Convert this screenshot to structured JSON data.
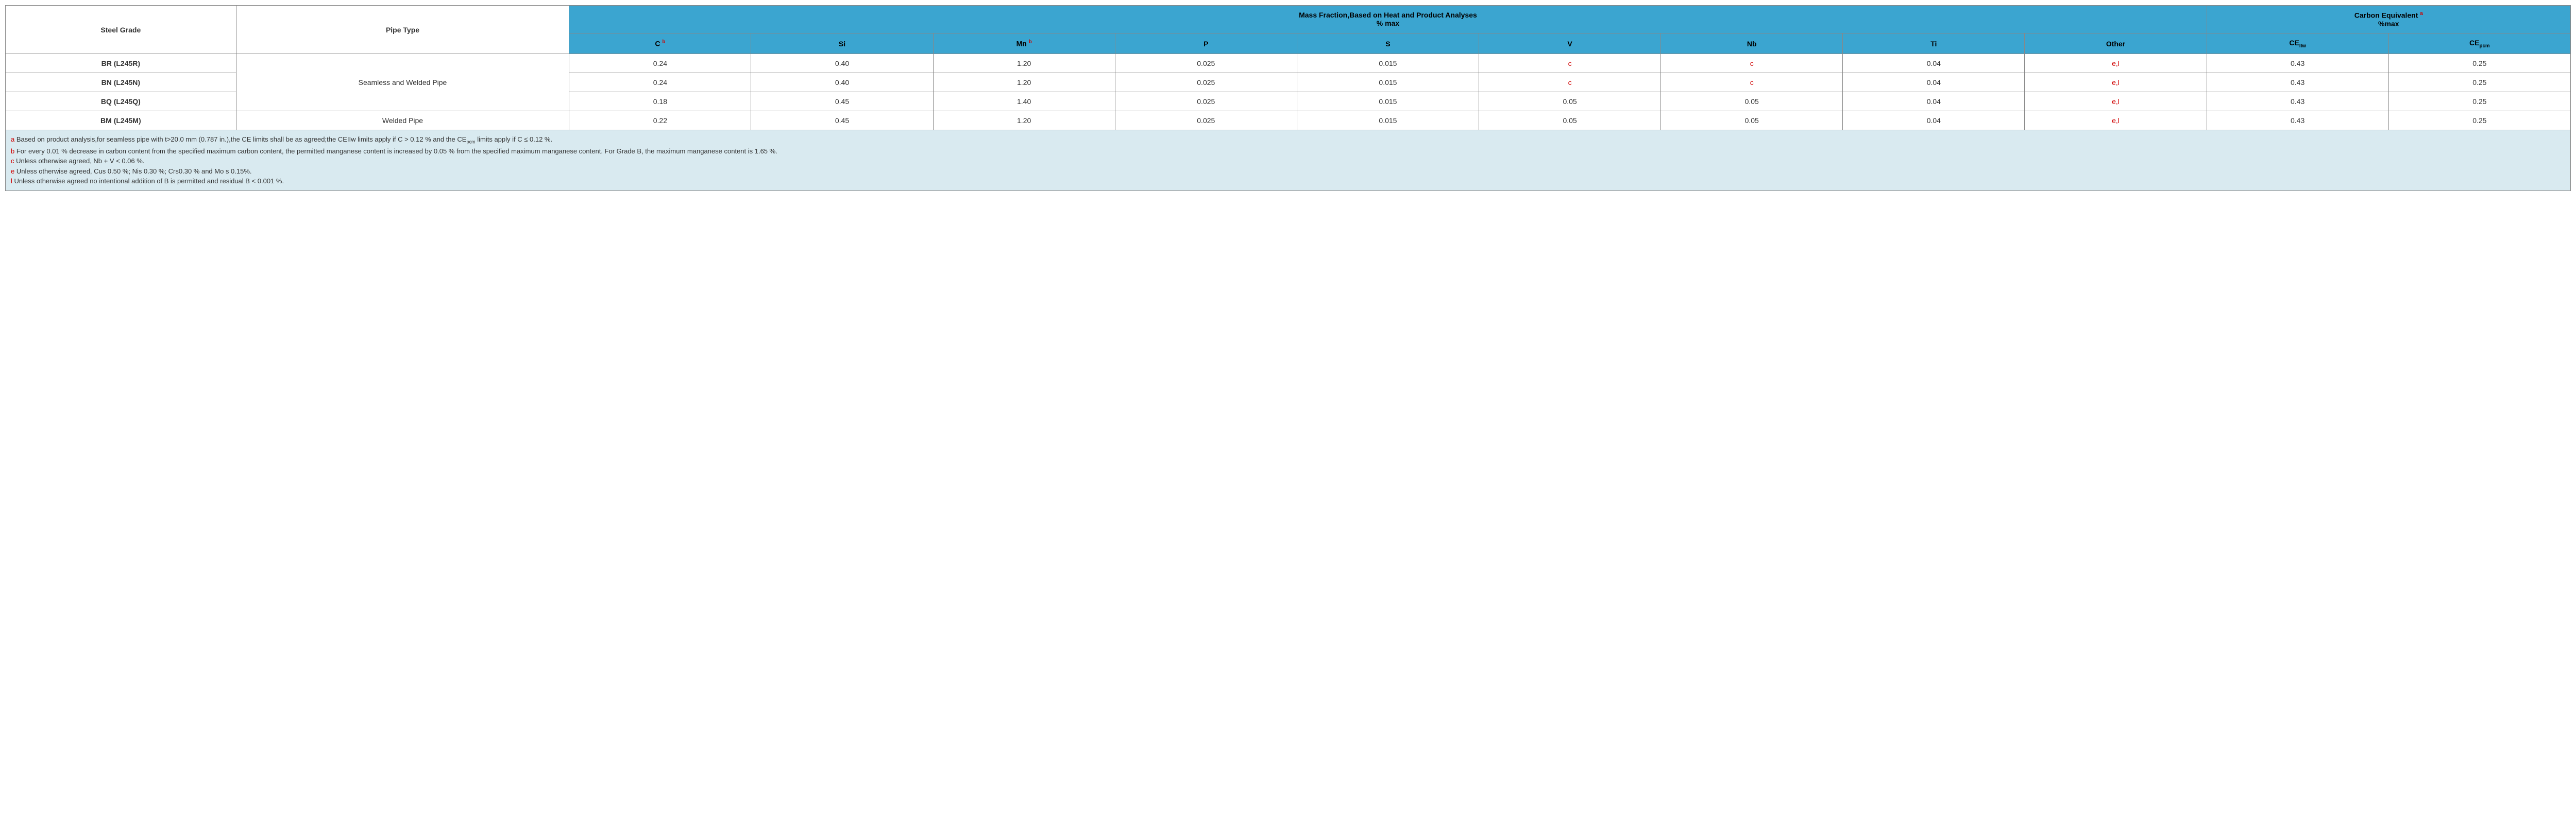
{
  "header": {
    "steel_grade": "Steel Grade",
    "pipe_type": "Pipe Type",
    "mass_fraction_title": "Mass Fraction,Based on Heat and Product Analyses",
    "mass_fraction_sub": "% max",
    "carbon_eq_title": "Carbon Equivalent",
    "carbon_eq_note": "a",
    "carbon_eq_sub": "%max",
    "cols": {
      "c": "C",
      "c_note": "b",
      "si": "Si",
      "mn": "Mn",
      "mn_note": "b",
      "p": "P",
      "s": "S",
      "v": "V",
      "nb": "Nb",
      "ti": "Ti",
      "other": "Other",
      "ceiiw": "CE",
      "ceiiw_sub": "IIw",
      "cepcm": "CE",
      "cepcm_sub": "pcm"
    }
  },
  "pipe_types": {
    "seamless_welded": "Seamless and Welded Pipe",
    "welded": "Welded Pipe"
  },
  "rows": [
    {
      "grade": "BR (L245R)",
      "c": "0.24",
      "si": "0.40",
      "mn": "1.20",
      "p": "0.025",
      "s": "0.015",
      "v": "c",
      "v_red": true,
      "nb": "c",
      "nb_red": true,
      "ti": "0.04",
      "other": "e,l",
      "other_red": true,
      "ceiiw": "0.43",
      "cepcm": "0.25"
    },
    {
      "grade": "BN (L245N)",
      "c": "0.24",
      "si": "0.40",
      "mn": "1.20",
      "p": "0.025",
      "s": "0.015",
      "v": "c",
      "v_red": true,
      "nb": "c",
      "nb_red": true,
      "ti": "0.04",
      "other": "e,l",
      "other_red": true,
      "ceiiw": "0.43",
      "cepcm": "0.25"
    },
    {
      "grade": "BQ (L245Q)",
      "c": "0.18",
      "si": "0.45",
      "mn": "1.40",
      "p": "0.025",
      "s": "0.015",
      "v": "0.05",
      "v_red": false,
      "nb": "0.05",
      "nb_red": false,
      "ti": "0.04",
      "other": "e,l",
      "other_red": true,
      "ceiiw": "0.43",
      "cepcm": "0.25"
    },
    {
      "grade": "BM (L245M)",
      "c": "0.22",
      "si": "0.45",
      "mn": "1.20",
      "p": "0.025",
      "s": "0.015",
      "v": "0.05",
      "v_red": false,
      "nb": "0.05",
      "nb_red": false,
      "ti": "0.04",
      "other": "e,l",
      "other_red": true,
      "ceiiw": "0.43",
      "cepcm": "0.25"
    }
  ],
  "footnotes": {
    "a": {
      "key": "a",
      "text": " Based on product analysis,for seamless pipe with t>20.0 mm (0.787 in.),the CE limits shall be as agreed;the CEIIw limits apply if C > 0.12 % and the CE",
      "sub": "pcm",
      "tail": " limits apply if C ≤ 0.12 %."
    },
    "b": {
      "key": "b",
      "text": " For every 0.01 % decrease in carbon content from the specified maximum carbon content, the permitted manganese content is increased by 0.05 % from the specified maximum manganese content. For Grade B, the maximum manganese content is 1.65 %."
    },
    "c": {
      "key": "c",
      "text": " Unless otherwise agreed, Nb + V < 0.06 %."
    },
    "e": {
      "key": "e",
      "text": " Unless otherwise agreed, Cus 0.50 %; Nis 0.30 %; Crs0.30 % and Mo s 0.15%."
    },
    "l": {
      "key": "l",
      "text": " Unless otherwise agreed no intentional addition of B is permitted and residual B < 0.001 %."
    }
  },
  "colors": {
    "header_blue": "#3ba5d0",
    "footnote_bg": "#d9eaf0",
    "red": "#d00000",
    "border": "#888888"
  }
}
